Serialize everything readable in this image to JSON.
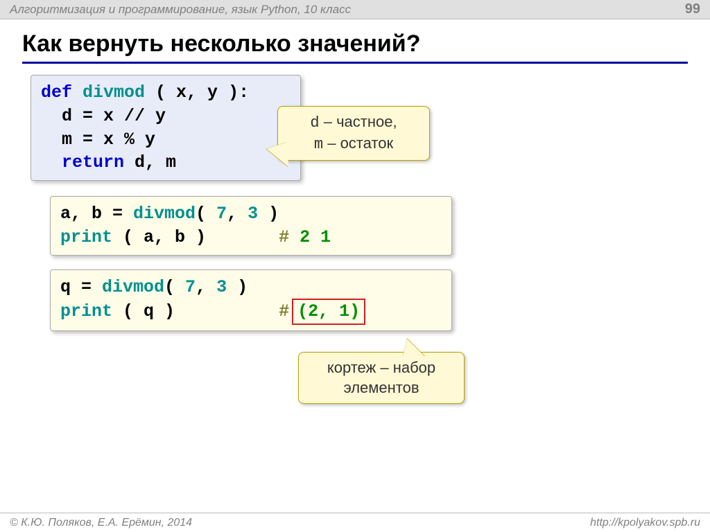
{
  "header": {
    "subject": "Алгоритмизация и программирование, язык Python, 10 класс",
    "page_number": "99"
  },
  "title": "Как вернуть несколько значений?",
  "colors": {
    "keyword_blue": "#0000d0",
    "identifier_teal": "#009090",
    "text_black": "#000000",
    "callout_bg": "#fff9d6",
    "callout_border": "#bca000",
    "bluebox_bg": "#e8ecf8",
    "yellowbox_bg": "#fffde8",
    "title_underline": "#000099",
    "comment_olive": "#808030",
    "comment_green": "#009000",
    "result_border": "#d02020"
  },
  "code1": {
    "l1_def": "def",
    "l1_name": " divmod",
    "l1_rest": " ( x, y ):",
    "l2": "  d = x // y",
    "l3": "  m = x % y",
    "l4_ret": "  return",
    "l4_rest": " d, m"
  },
  "callout1": {
    "line1a": "d",
    "line1b": " – частное,",
    "line2a": "m",
    "line2b": " – остаток"
  },
  "code2": {
    "l1a": "a, b = ",
    "l1b": "divmod",
    "l1c": "( ",
    "l1d": "7",
    "l1e": ", ",
    "l1f": "3",
    "l1g": " )",
    "l2a": "print",
    "l2b": " ( a, b )",
    "l2pad": "       ",
    "l2c": "#",
    "l2d": " 2 1"
  },
  "code3": {
    "l1a": "q = ",
    "l1b": "divmod",
    "l1c": "( ",
    "l1d": "7",
    "l1e": ", ",
    "l1f": "3",
    "l1g": " )",
    "l2a": "print",
    "l2b": " ( q )",
    "l2pad": "          ",
    "l2c": "#",
    "l2d": "(2, 1)"
  },
  "callout2": {
    "line1": "кортеж – набор",
    "line2": "элементов"
  },
  "footer": {
    "left": "© К.Ю. Поляков, Е.А. Ерёмин, 2014",
    "right": "http://kpolyakov.spb.ru"
  }
}
